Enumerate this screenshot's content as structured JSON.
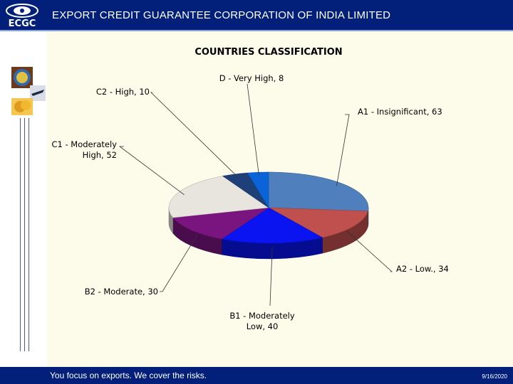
{
  "header": {
    "org_title": "EXPORT CREDIT GUARANTEE CORPORATION OF INDIA LIMITED",
    "logo_text": "ECGC"
  },
  "footer": {
    "tagline": "You focus on exports. We cover the risks.",
    "date": "9/16/2020"
  },
  "colors": {
    "brand": "#02207a",
    "chart_bg": "#fdfbe9"
  },
  "chart_data": {
    "type": "pie",
    "title": "COUNTRIES CLASSIFICATION",
    "three_d": true,
    "slices": [
      {
        "label": "A1 - Insignificant, 63",
        "name": "A1 - Insignificant",
        "value": 63,
        "color": "#4f80bd"
      },
      {
        "label": "A2 - Low., 34",
        "name": "A2 - Low.",
        "value": 34,
        "color": "#c0504d"
      },
      {
        "label": "B1 - Moderately Low, 40",
        "name": "B1 - Moderately Low",
        "value": 40,
        "color": "#0a14f0"
      },
      {
        "label": "B2 - Moderate, 30",
        "name": "B2 - Moderate",
        "value": 30,
        "color": "#7a1580"
      },
      {
        "label": "C1 - Moderately High, 52",
        "name": "C1 - Moderately High",
        "value": 52,
        "color": "#e8e4de"
      },
      {
        "label": "C2 - High, 10",
        "name": "C2 - High",
        "value": 10,
        "color": "#1f3f78"
      },
      {
        "label": "D - Very High, 8",
        "name": "D - Very High",
        "value": 8,
        "color": "#0a64d8"
      }
    ]
  }
}
